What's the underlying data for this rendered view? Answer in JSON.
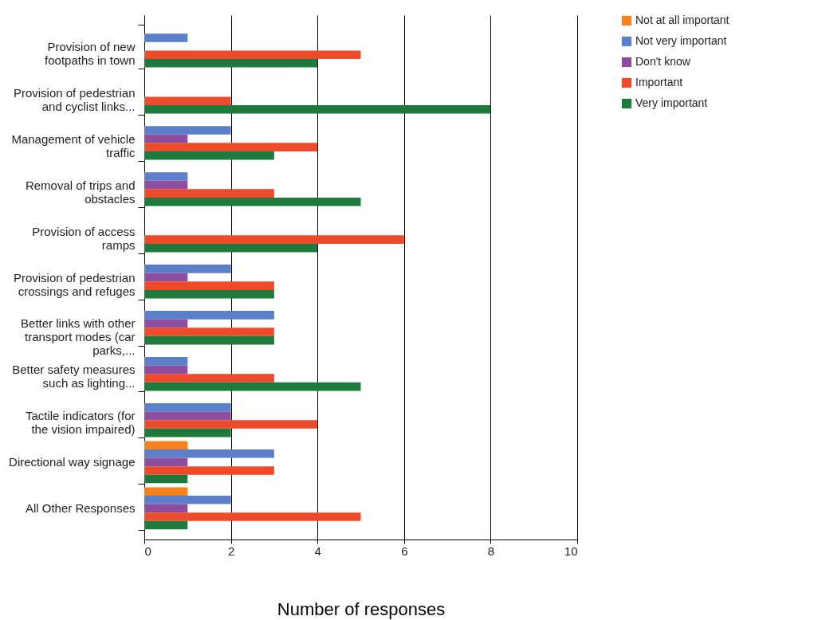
{
  "chart_data": {
    "type": "bar",
    "orientation": "horizontal",
    "xlabel": "Number of responses",
    "categories": [
      "Provision of new footpaths in town",
      "Provision of pedestrian and cyclist links...",
      "Management of vehicle traffic",
      "Removal of trips and obstacles",
      "Provision of access ramps",
      "Provision of pedestrian crossings and refuges",
      "Better links with other transport modes (car parks,...",
      "Better safety measures such as lighting...",
      "Tactile indicators (for the vision impaired)",
      "Directional way signage",
      "All Other Responses"
    ],
    "series": [
      {
        "name": "Not at all important",
        "color": "#f5821f",
        "values": [
          null,
          null,
          null,
          null,
          null,
          null,
          null,
          null,
          null,
          1,
          1
        ]
      },
      {
        "name": "Not very important",
        "color": "#5b7fc9",
        "values": [
          1,
          null,
          2,
          1,
          null,
          2,
          3,
          1,
          2,
          3,
          2
        ]
      },
      {
        "name": "Don't know",
        "color": "#8e4ea0",
        "values": [
          null,
          null,
          1,
          1,
          null,
          1,
          1,
          1,
          2,
          1,
          1
        ]
      },
      {
        "name": "Important",
        "color": "#ee4b2b",
        "values": [
          5,
          2,
          4,
          3,
          6,
          3,
          3,
          3,
          4,
          3,
          5
        ]
      },
      {
        "name": "Very important",
        "color": "#1e7a3c",
        "values": [
          4,
          8,
          3,
          5,
          4,
          3,
          3,
          5,
          2,
          1,
          1
        ]
      }
    ],
    "xlim": [
      0,
      10
    ],
    "xticks": [
      0,
      2,
      4,
      6,
      8,
      10
    ],
    "grid": "x",
    "legend": "right"
  }
}
